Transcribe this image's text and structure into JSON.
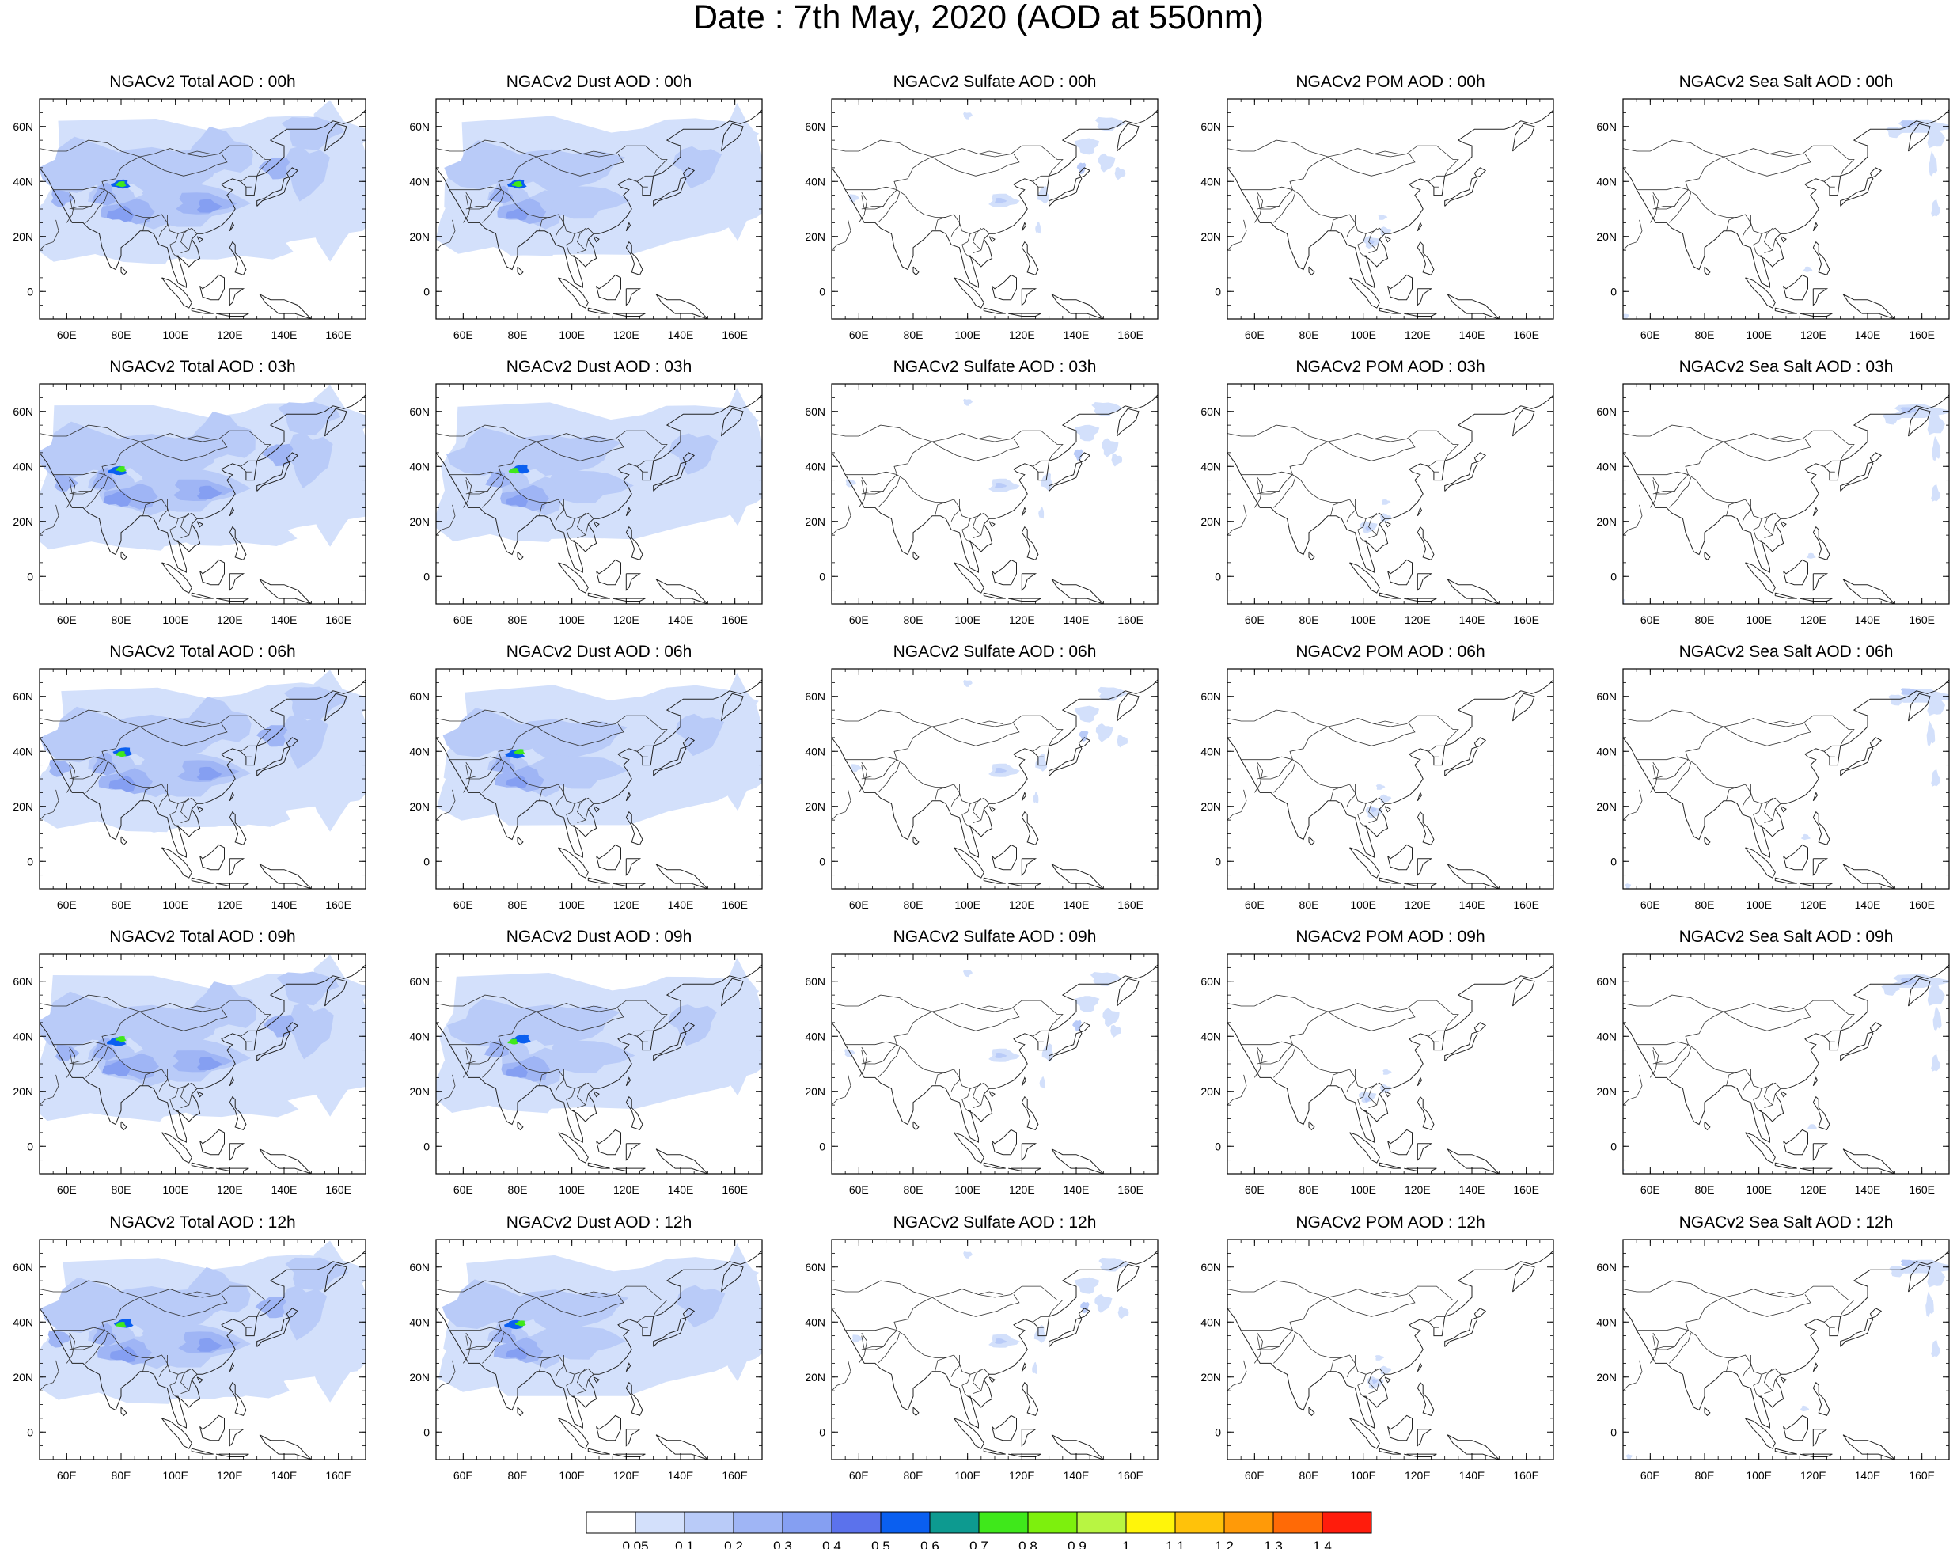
{
  "title": "Date : 7th May, 2020 (AOD at 550nm)",
  "map": {
    "lon_ticks": [
      "60E",
      "80E",
      "100E",
      "120E",
      "140E",
      "160E"
    ],
    "lat_ticks": [
      "60N",
      "40N",
      "20N",
      "0"
    ]
  },
  "panels": [
    [
      "NGACv2 Total AOD : 00h",
      "NGACv2 Dust AOD : 00h",
      "NGACv2 Sulfate AOD : 00h",
      "NGACv2 POM AOD : 00h",
      "NGACv2 Sea Salt AOD : 00h"
    ],
    [
      "NGACv2 Total AOD : 03h",
      "NGACv2 Dust AOD : 03h",
      "NGACv2 Sulfate AOD : 03h",
      "NGACv2 POM AOD : 03h",
      "NGACv2 Sea Salt AOD : 03h"
    ],
    [
      "NGACv2 Total AOD : 06h",
      "NGACv2 Dust AOD : 06h",
      "NGACv2 Sulfate AOD : 06h",
      "NGACv2 POM AOD : 06h",
      "NGACv2 Sea Salt AOD : 06h"
    ],
    [
      "NGACv2 Total AOD : 09h",
      "NGACv2 Dust AOD : 09h",
      "NGACv2 Sulfate AOD : 09h",
      "NGACv2 POM AOD : 09h",
      "NGACv2 Sea Salt  AOD : 09h"
    ],
    [
      "NGACv2 Total AOD  : 12h",
      "NGACv2 Dust AOD : 12h",
      "NGACv2 Sulfate AOD : 12h",
      "NGACv2 POM  AOD : 12h",
      "NGACv2 Sea Salt  AOD : 12h"
    ]
  ],
  "colorbar": {
    "labels": [
      "0.05",
      "0.1",
      "0.2",
      "0.3",
      "0.4",
      "0.5",
      "0.6",
      "0.7",
      "0.8",
      "0.9",
      "1",
      "1.1",
      "1.2",
      "1.3",
      "1.4"
    ],
    "colors": [
      "#ffffff",
      "#d3e0fb",
      "#b9cbf8",
      "#9fb5f5",
      "#859ff2",
      "#5b72ec",
      "#0a5ff0",
      "#0d9a90",
      "#3fe81b",
      "#7df00d",
      "#b8f542",
      "#fff50a",
      "#ffc20a",
      "#ff9a08",
      "#ff6a06",
      "#ff1c0c"
    ]
  }
}
